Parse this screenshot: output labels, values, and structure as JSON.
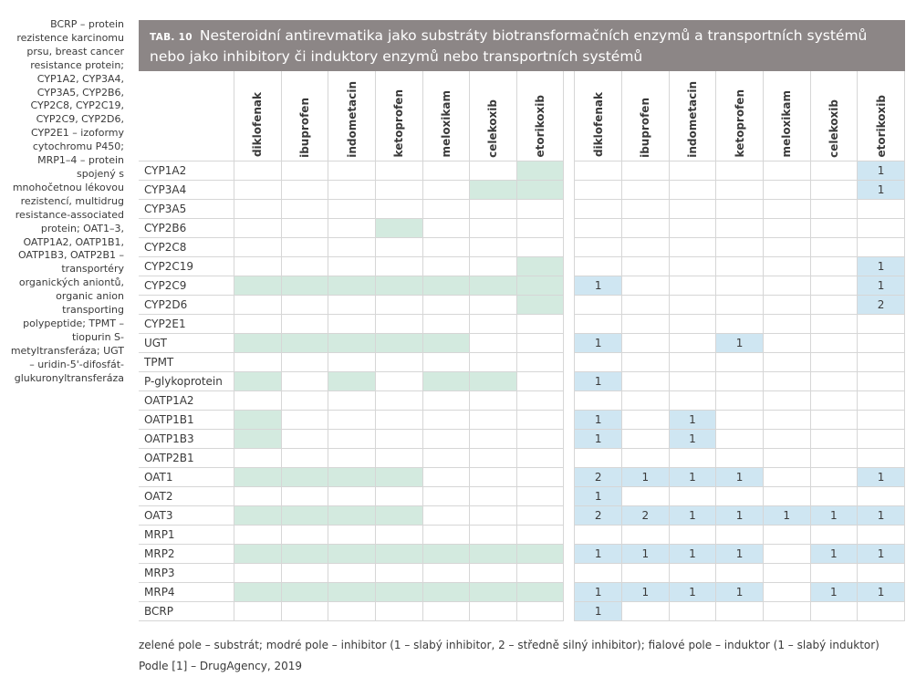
{
  "sidebar": {
    "text": "BCRP – protein rezistence karcinomu prsu, breast cancer resistance protein; CYP1A2, CYP3A4, CYP3A5, CYP2B6, CYP2C8, CYP2C19, CYP2C9, CYP2D6, CYP2E1 – izoformy cytochromu P450; MRP1–4 – protein spojený s mnohočetnou lékovou rezistencí, multidrug resistance-associated protein; OAT1–3, OATP1A2, OATP1B1, OATP1B3, OATP2B1 – transportéry organických aniontů, organic anion transporting polypeptide; TPMT – tiopurin S-metyltransferáza; UGT – uridin-5'-difosfát-glukuronyltransferáza"
  },
  "table": {
    "tab_number": "TAB. 10",
    "title": "Nesteroidní antirevmatika jako substráty biotransformačních enzymů a transportních systémů nebo jako inhibitory či induktory enzymů nebo transportních systémů",
    "drugs": [
      "diklofenak",
      "ibuprofen",
      "indometacin",
      "ketoprofen",
      "meloxikam",
      "celekoxib",
      "etorikoxib"
    ],
    "colors": {
      "substrate": "#d3eadf",
      "inhibitor": "#cfe6f2",
      "header": "#8c8686"
    },
    "rows": [
      {
        "label": "CYP1A2",
        "substrate": [
          0,
          0,
          0,
          0,
          0,
          0,
          1
        ],
        "inhibitor": [
          "",
          "",
          "",
          "",
          "",
          "",
          "1"
        ]
      },
      {
        "label": "CYP3A4",
        "substrate": [
          0,
          0,
          0,
          0,
          0,
          1,
          1
        ],
        "inhibitor": [
          "",
          "",
          "",
          "",
          "",
          "",
          "1"
        ]
      },
      {
        "label": "CYP3A5",
        "substrate": [
          0,
          0,
          0,
          0,
          0,
          0,
          0
        ],
        "inhibitor": [
          "",
          "",
          "",
          "",
          "",
          "",
          ""
        ]
      },
      {
        "label": "CYP2B6",
        "substrate": [
          0,
          0,
          0,
          1,
          0,
          0,
          0
        ],
        "inhibitor": [
          "",
          "",
          "",
          "",
          "",
          "",
          ""
        ]
      },
      {
        "label": "CYP2C8",
        "substrate": [
          0,
          0,
          0,
          0,
          0,
          0,
          0
        ],
        "inhibitor": [
          "",
          "",
          "",
          "",
          "",
          "",
          ""
        ]
      },
      {
        "label": "CYP2C19",
        "substrate": [
          0,
          0,
          0,
          0,
          0,
          0,
          1
        ],
        "inhibitor": [
          "",
          "",
          "",
          "",
          "",
          "",
          "1"
        ]
      },
      {
        "label": "CYP2C9",
        "substrate": [
          1,
          1,
          1,
          1,
          1,
          1,
          1
        ],
        "inhibitor": [
          "1",
          "",
          "",
          "",
          "",
          "",
          "1"
        ]
      },
      {
        "label": "CYP2D6",
        "substrate": [
          0,
          0,
          0,
          0,
          0,
          0,
          1
        ],
        "inhibitor": [
          "",
          "",
          "",
          "",
          "",
          "",
          "2"
        ]
      },
      {
        "label": "CYP2E1",
        "substrate": [
          0,
          0,
          0,
          0,
          0,
          0,
          0
        ],
        "inhibitor": [
          "",
          "",
          "",
          "",
          "",
          "",
          ""
        ]
      },
      {
        "label": "UGT",
        "substrate": [
          1,
          1,
          1,
          1,
          1,
          0,
          0
        ],
        "inhibitor": [
          "1",
          "",
          "",
          "1",
          "",
          "",
          ""
        ]
      },
      {
        "label": "TPMT",
        "substrate": [
          0,
          0,
          0,
          0,
          0,
          0,
          0
        ],
        "inhibitor": [
          "",
          "",
          "",
          "",
          "",
          "",
          ""
        ]
      },
      {
        "label": "P-glykoprotein",
        "substrate": [
          1,
          0,
          1,
          0,
          1,
          1,
          0
        ],
        "inhibitor": [
          "1",
          "",
          "",
          "",
          "",
          "",
          ""
        ]
      },
      {
        "label": "OATP1A2",
        "substrate": [
          0,
          0,
          0,
          0,
          0,
          0,
          0
        ],
        "inhibitor": [
          "",
          "",
          "",
          "",
          "",
          "",
          ""
        ]
      },
      {
        "label": "OATP1B1",
        "substrate": [
          1,
          0,
          0,
          0,
          0,
          0,
          0
        ],
        "inhibitor": [
          "1",
          "",
          "1",
          "",
          "",
          "",
          ""
        ]
      },
      {
        "label": "OATP1B3",
        "substrate": [
          1,
          0,
          0,
          0,
          0,
          0,
          0
        ],
        "inhibitor": [
          "1",
          "",
          "1",
          "",
          "",
          "",
          ""
        ]
      },
      {
        "label": "OATP2B1",
        "substrate": [
          0,
          0,
          0,
          0,
          0,
          0,
          0
        ],
        "inhibitor": [
          "",
          "",
          "",
          "",
          "",
          "",
          ""
        ]
      },
      {
        "label": "OAT1",
        "substrate": [
          1,
          1,
          1,
          1,
          0,
          0,
          0
        ],
        "inhibitor": [
          "2",
          "1",
          "1",
          "1",
          "",
          "",
          "1"
        ]
      },
      {
        "label": "OAT2",
        "substrate": [
          0,
          0,
          0,
          0,
          0,
          0,
          0
        ],
        "inhibitor": [
          "1",
          "",
          "",
          "",
          "",
          "",
          ""
        ]
      },
      {
        "label": "OAT3",
        "substrate": [
          1,
          1,
          1,
          1,
          0,
          0,
          0
        ],
        "inhibitor": [
          "2",
          "2",
          "1",
          "1",
          "1",
          "1",
          "1"
        ]
      },
      {
        "label": "MRP1",
        "substrate": [
          0,
          0,
          0,
          0,
          0,
          0,
          0
        ],
        "inhibitor": [
          "",
          "",
          "",
          "",
          "",
          "",
          ""
        ]
      },
      {
        "label": "MRP2",
        "substrate": [
          1,
          1,
          1,
          1,
          1,
          1,
          1
        ],
        "inhibitor": [
          "1",
          "1",
          "1",
          "1",
          "",
          "1",
          "1"
        ]
      },
      {
        "label": "MRP3",
        "substrate": [
          0,
          0,
          0,
          0,
          0,
          0,
          0
        ],
        "inhibitor": [
          "",
          "",
          "",
          "",
          "",
          "",
          ""
        ]
      },
      {
        "label": "MRP4",
        "substrate": [
          1,
          1,
          1,
          1,
          1,
          1,
          1
        ],
        "inhibitor": [
          "1",
          "1",
          "1",
          "1",
          "",
          "1",
          "1"
        ]
      },
      {
        "label": "BCRP",
        "substrate": [
          0,
          0,
          0,
          0,
          0,
          0,
          0
        ],
        "inhibitor": [
          "1",
          "",
          "",
          "",
          "",
          "",
          ""
        ]
      }
    ]
  },
  "legend": "zelené pole – substrát; modré pole – inhibitor (1 – slabý inhibitor, 2 – středně silný inhibitor); fialové pole – induktor (1 – slabý induktor)",
  "source": "Podle [1] – DrugAgency, 2019"
}
